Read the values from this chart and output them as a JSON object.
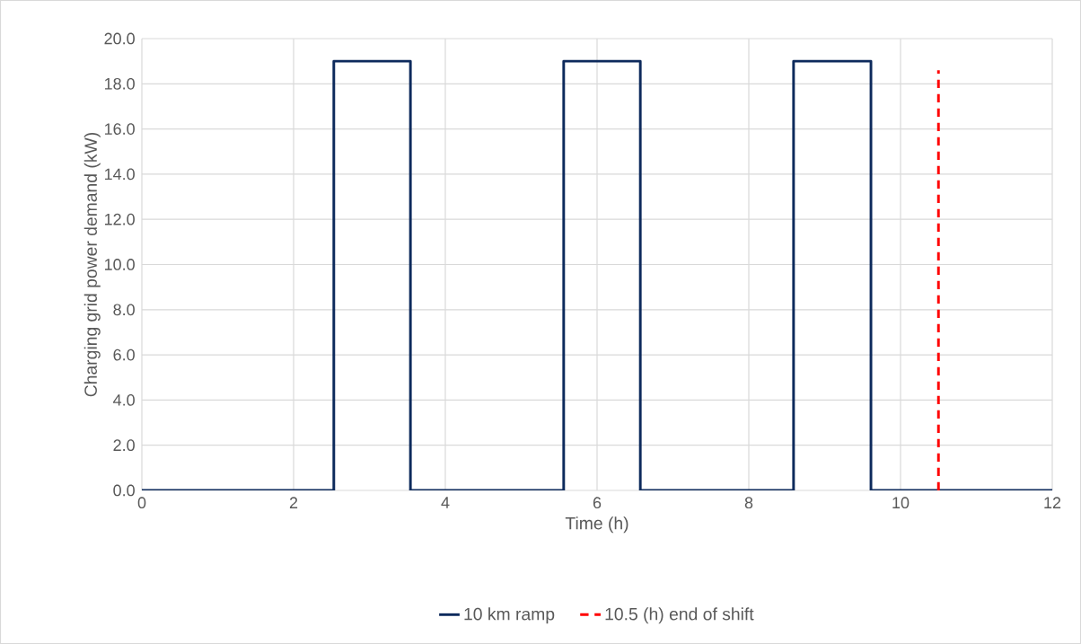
{
  "chart_data": {
    "type": "line",
    "xlabel": "Time (h)",
    "ylabel": "Charging grid power demand (kW)",
    "xlim": [
      0,
      12
    ],
    "xticks": [
      0,
      2,
      4,
      6,
      8,
      10,
      12
    ],
    "ylim": [
      0,
      20
    ],
    "yticks": [
      {
        "value": 0,
        "label": "0.0"
      },
      {
        "value": 2,
        "label": "2.0"
      },
      {
        "value": 4,
        "label": "4.0"
      },
      {
        "value": 6,
        "label": "6.0"
      },
      {
        "value": 8,
        "label": "8.0"
      },
      {
        "value": 10,
        "label": "10.0"
      },
      {
        "value": 12,
        "label": "12.0"
      },
      {
        "value": 14,
        "label": "14.0"
      },
      {
        "value": 16,
        "label": "16.0"
      },
      {
        "value": 18,
        "label": "18.0"
      },
      {
        "value": 20,
        "label": "20.0"
      }
    ],
    "grid": true,
    "legend": "bottom",
    "marker": "none",
    "series": [
      {
        "name": "10 km ramp",
        "color": "#0d2a5c",
        "line_style": "solid",
        "x": [
          0,
          2.53,
          2.53,
          3.54,
          3.54,
          5.56,
          5.56,
          6.57,
          6.57,
          8.59,
          8.59,
          9.61,
          9.61,
          12
        ],
        "values": [
          0,
          0,
          19,
          19,
          0,
          0,
          19,
          19,
          0,
          0,
          19,
          19,
          0,
          0
        ]
      },
      {
        "name": "10.5 (h) end of shift",
        "color": "#ff0000",
        "line_style": "dashed",
        "x": [
          10.5,
          10.5
        ],
        "values": [
          0,
          18.6
        ]
      }
    ]
  }
}
